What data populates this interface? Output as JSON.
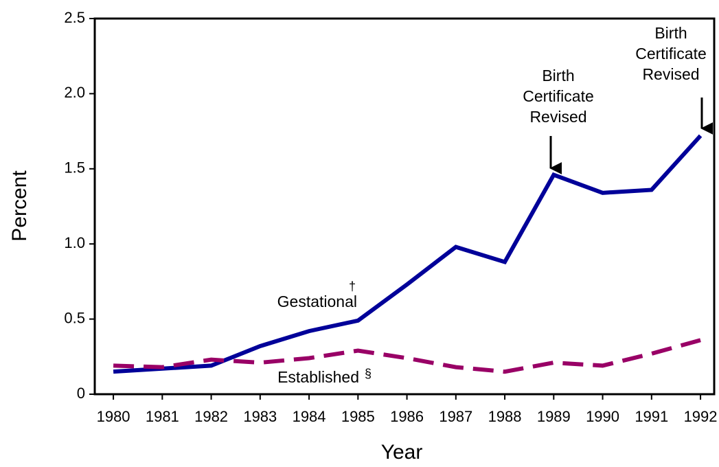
{
  "chart_data": {
    "type": "line",
    "x_label": "Year",
    "y_label": "Percent",
    "x": [
      1980,
      1981,
      1982,
      1983,
      1984,
      1985,
      1986,
      1987,
      1988,
      1989,
      1990,
      1991,
      1992
    ],
    "series": [
      {
        "name": "Gestational",
        "note": "†",
        "color": "#000099",
        "dash": false,
        "values": [
          0.15,
          0.17,
          0.19,
          0.32,
          0.42,
          0.49,
          0.73,
          0.98,
          0.88,
          1.46,
          1.34,
          1.36,
          1.72
        ]
      },
      {
        "name": "Established",
        "note": "§",
        "color": "#990066",
        "dash": true,
        "values": [
          0.19,
          0.18,
          0.23,
          0.21,
          0.24,
          0.29,
          0.24,
          0.18,
          0.15,
          0.21,
          0.19,
          0.27,
          0.36
        ]
      }
    ],
    "annotations": [
      [
        "Birth",
        "Certificate",
        "Revised"
      ],
      [
        "Birth",
        "Certificate",
        "Revised"
      ]
    ],
    "xlim": [
      1979.62,
      1992.28
    ],
    "xticks": [
      1980,
      1981,
      1982,
      1983,
      1984,
      1985,
      1986,
      1987,
      1988,
      1989,
      1990,
      1991,
      1992
    ],
    "ylim": [
      0,
      2.5
    ],
    "yticks": [
      0,
      0.5,
      {
        "value": 1,
        "label": "1.0"
      },
      1.5,
      {
        "value": 2,
        "label": "2.0"
      },
      2.5
    ]
  }
}
